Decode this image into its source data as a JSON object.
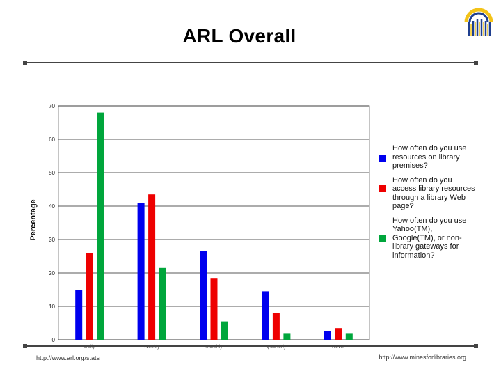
{
  "slide": {
    "title": "ARL Overall",
    "footer_left": "http://www.arl.org/stats",
    "footer_right": "http://www.minesforlibraries.org"
  },
  "logo": {
    "icon": "arch-logo-icon",
    "colors": [
      "#f3c318",
      "#1f3f8f"
    ]
  },
  "chart_data": {
    "type": "bar",
    "categories": [
      "Daily",
      "Weekly",
      "Monthly",
      "Quarterly",
      "Never"
    ],
    "series": [
      {
        "name": "How often do you use resources on library premises?",
        "color": "#0000ee",
        "values": [
          15,
          41,
          26.5,
          14.5,
          2.5
        ]
      },
      {
        "name": "How often do you access library resources through a library Web page?",
        "color": "#ee0000",
        "values": [
          26,
          43.5,
          18.5,
          8,
          3.5
        ]
      },
      {
        "name": "How often do you use Yahoo(TM), Google(TM), or non-library gateways for information?",
        "color": "#00a63c",
        "values": [
          68,
          21.5,
          5.5,
          2,
          2
        ]
      }
    ],
    "title": "",
    "xlabel": "",
    "ylabel": "Percentage",
    "ylim": [
      0,
      70
    ],
    "yticks": [
      0,
      10,
      20,
      30,
      40,
      50,
      60,
      70
    ],
    "grid": true,
    "legend_position": "right"
  }
}
